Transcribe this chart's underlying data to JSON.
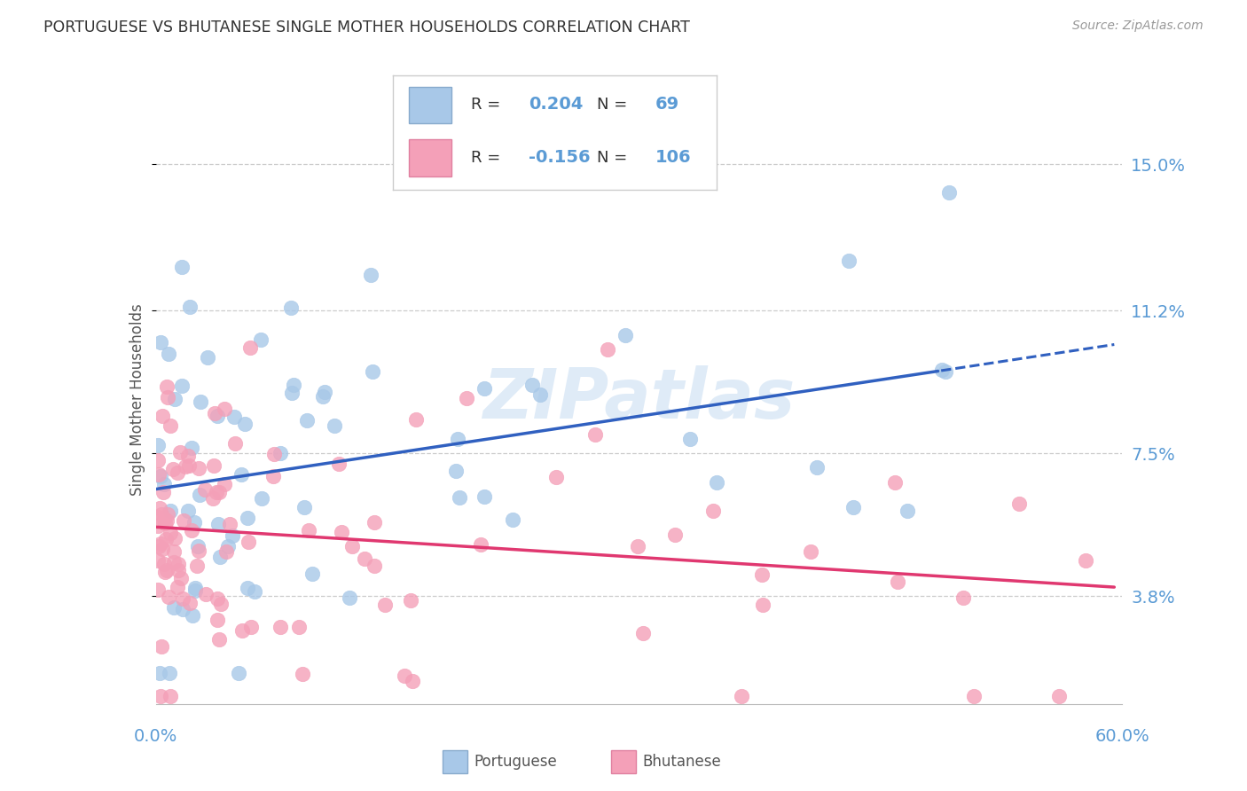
{
  "title": "PORTUGUESE VS BHUTANESE SINGLE MOTHER HOUSEHOLDS CORRELATION CHART",
  "source": "Source: ZipAtlas.com",
  "ylabel": "Single Mother Households",
  "yticks": [
    0.038,
    0.075,
    0.112,
    0.15
  ],
  "ytick_labels": [
    "3.8%",
    "7.5%",
    "11.2%",
    "15.0%"
  ],
  "watermark": "ZIPatlas",
  "blue_scatter_color": "#a8c8e8",
  "pink_scatter_color": "#f4a0b8",
  "blue_line_color": "#3060c0",
  "pink_line_color": "#e03870",
  "background_color": "#ffffff",
  "title_color": "#333333",
  "axis_label_color": "#5b9bd5",
  "grid_color": "#cccccc",
  "R_portuguese": 0.204,
  "N_portuguese": 69,
  "R_bhutanese": -0.156,
  "N_bhutanese": 106,
  "xlim": [
    0.0,
    0.6
  ],
  "ylim": [
    0.01,
    0.168
  ],
  "legend_R1": "0.204",
  "legend_N1": "69",
  "legend_R2": "-0.156",
  "legend_N2": "106"
}
